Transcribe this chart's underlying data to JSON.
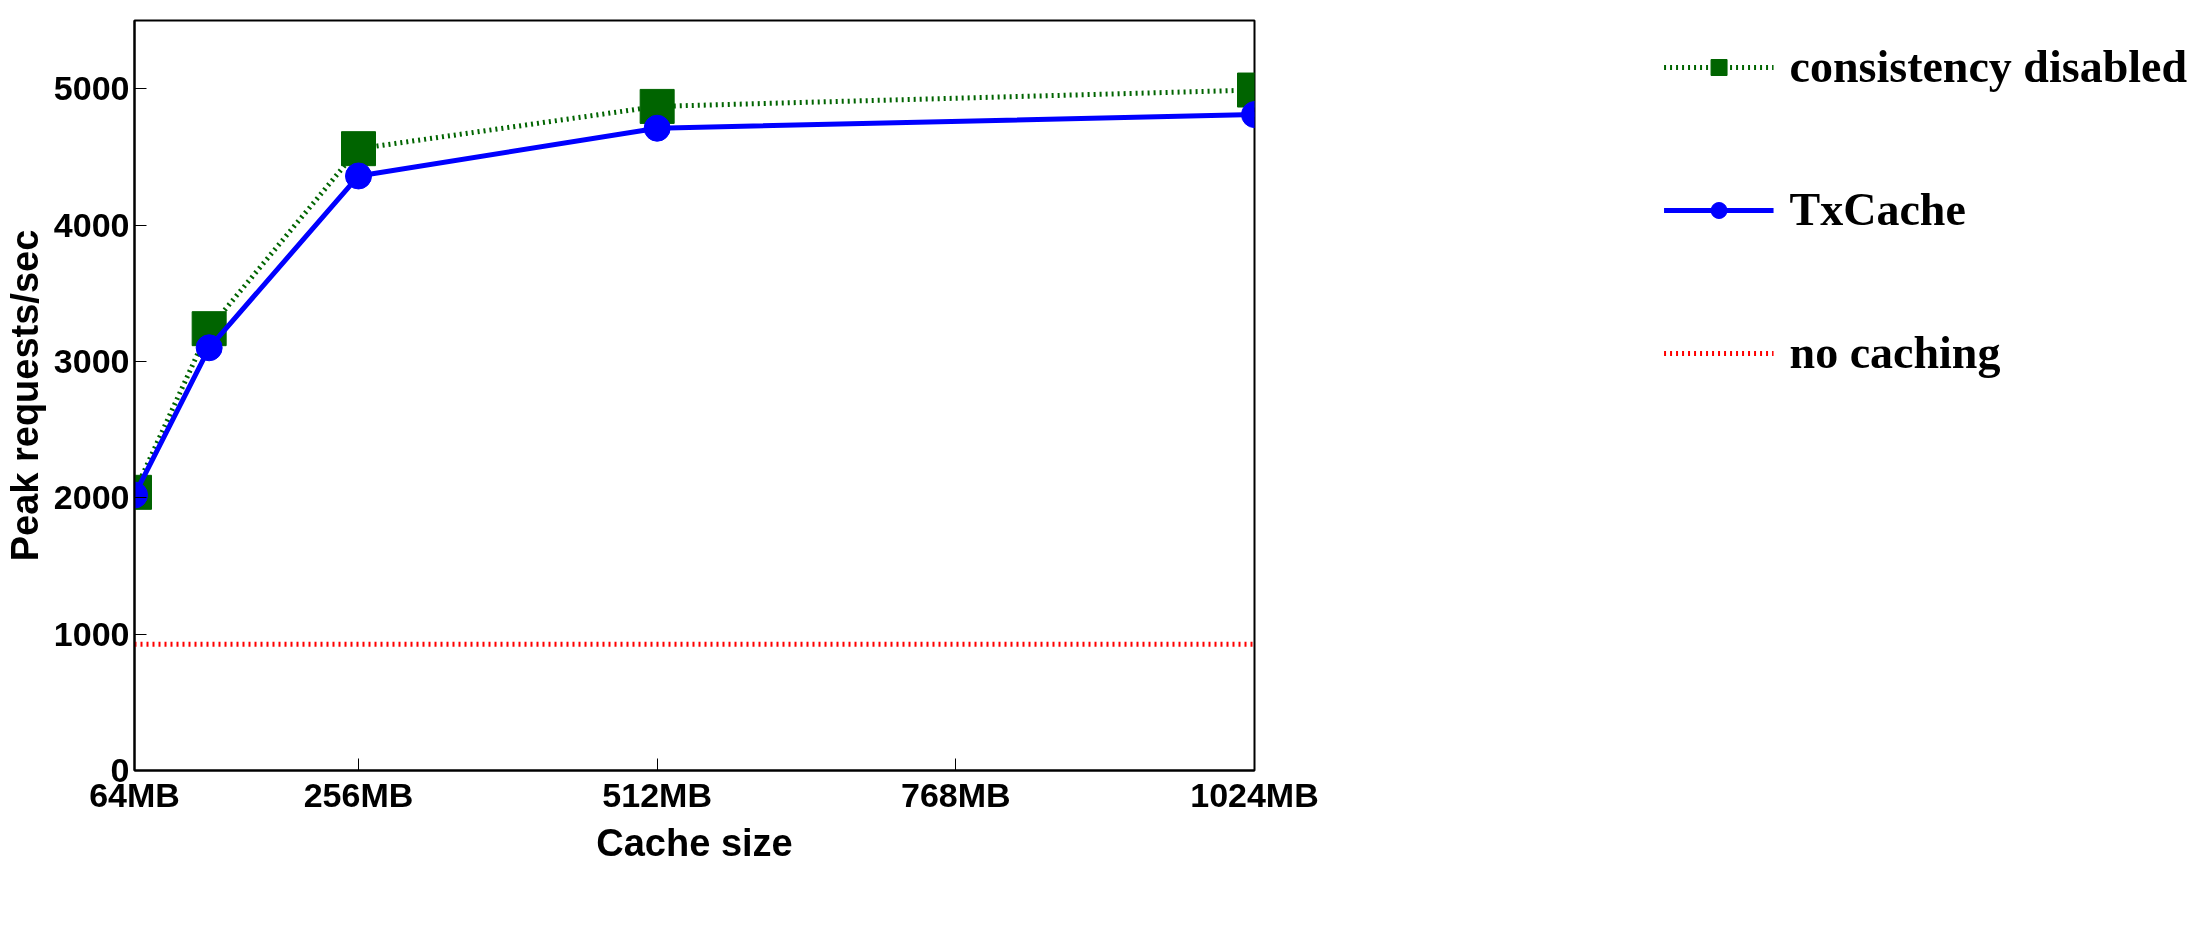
{
  "chart_data": {
    "type": "line",
    "xlabel": "Cache size",
    "ylabel": "Peak requests/sec",
    "x": [
      64,
      128,
      256,
      512,
      1024
    ],
    "series": [
      {
        "name": "consistency disabled",
        "color": "#006400",
        "marker": "square",
        "line_style": "dotted",
        "values": [
          2040,
          3240,
          4560,
          4870,
          4990
        ]
      },
      {
        "name": "TxCache",
        "color": "#0000ff",
        "marker": "circle",
        "line_style": "solid",
        "values": [
          2020,
          3100,
          4360,
          4710,
          4810
        ]
      },
      {
        "name": "no caching",
        "color": "#ff0000",
        "marker": "none",
        "line_style": "dotted",
        "x": [
          64,
          1024
        ],
        "values": [
          925,
          925
        ]
      }
    ],
    "xlim": [
      64,
      1024
    ],
    "ylim": [
      0,
      5500
    ],
    "xticks": [
      {
        "value": 64,
        "label": "64MB"
      },
      {
        "value": 256,
        "label": "256MB"
      },
      {
        "value": 512,
        "label": "512MB"
      },
      {
        "value": 768,
        "label": "768MB"
      },
      {
        "value": 1024,
        "label": "1024MB"
      }
    ],
    "yticks": [
      0,
      1000,
      2000,
      3000,
      4000,
      5000
    ],
    "grid": false,
    "legend": "right"
  }
}
